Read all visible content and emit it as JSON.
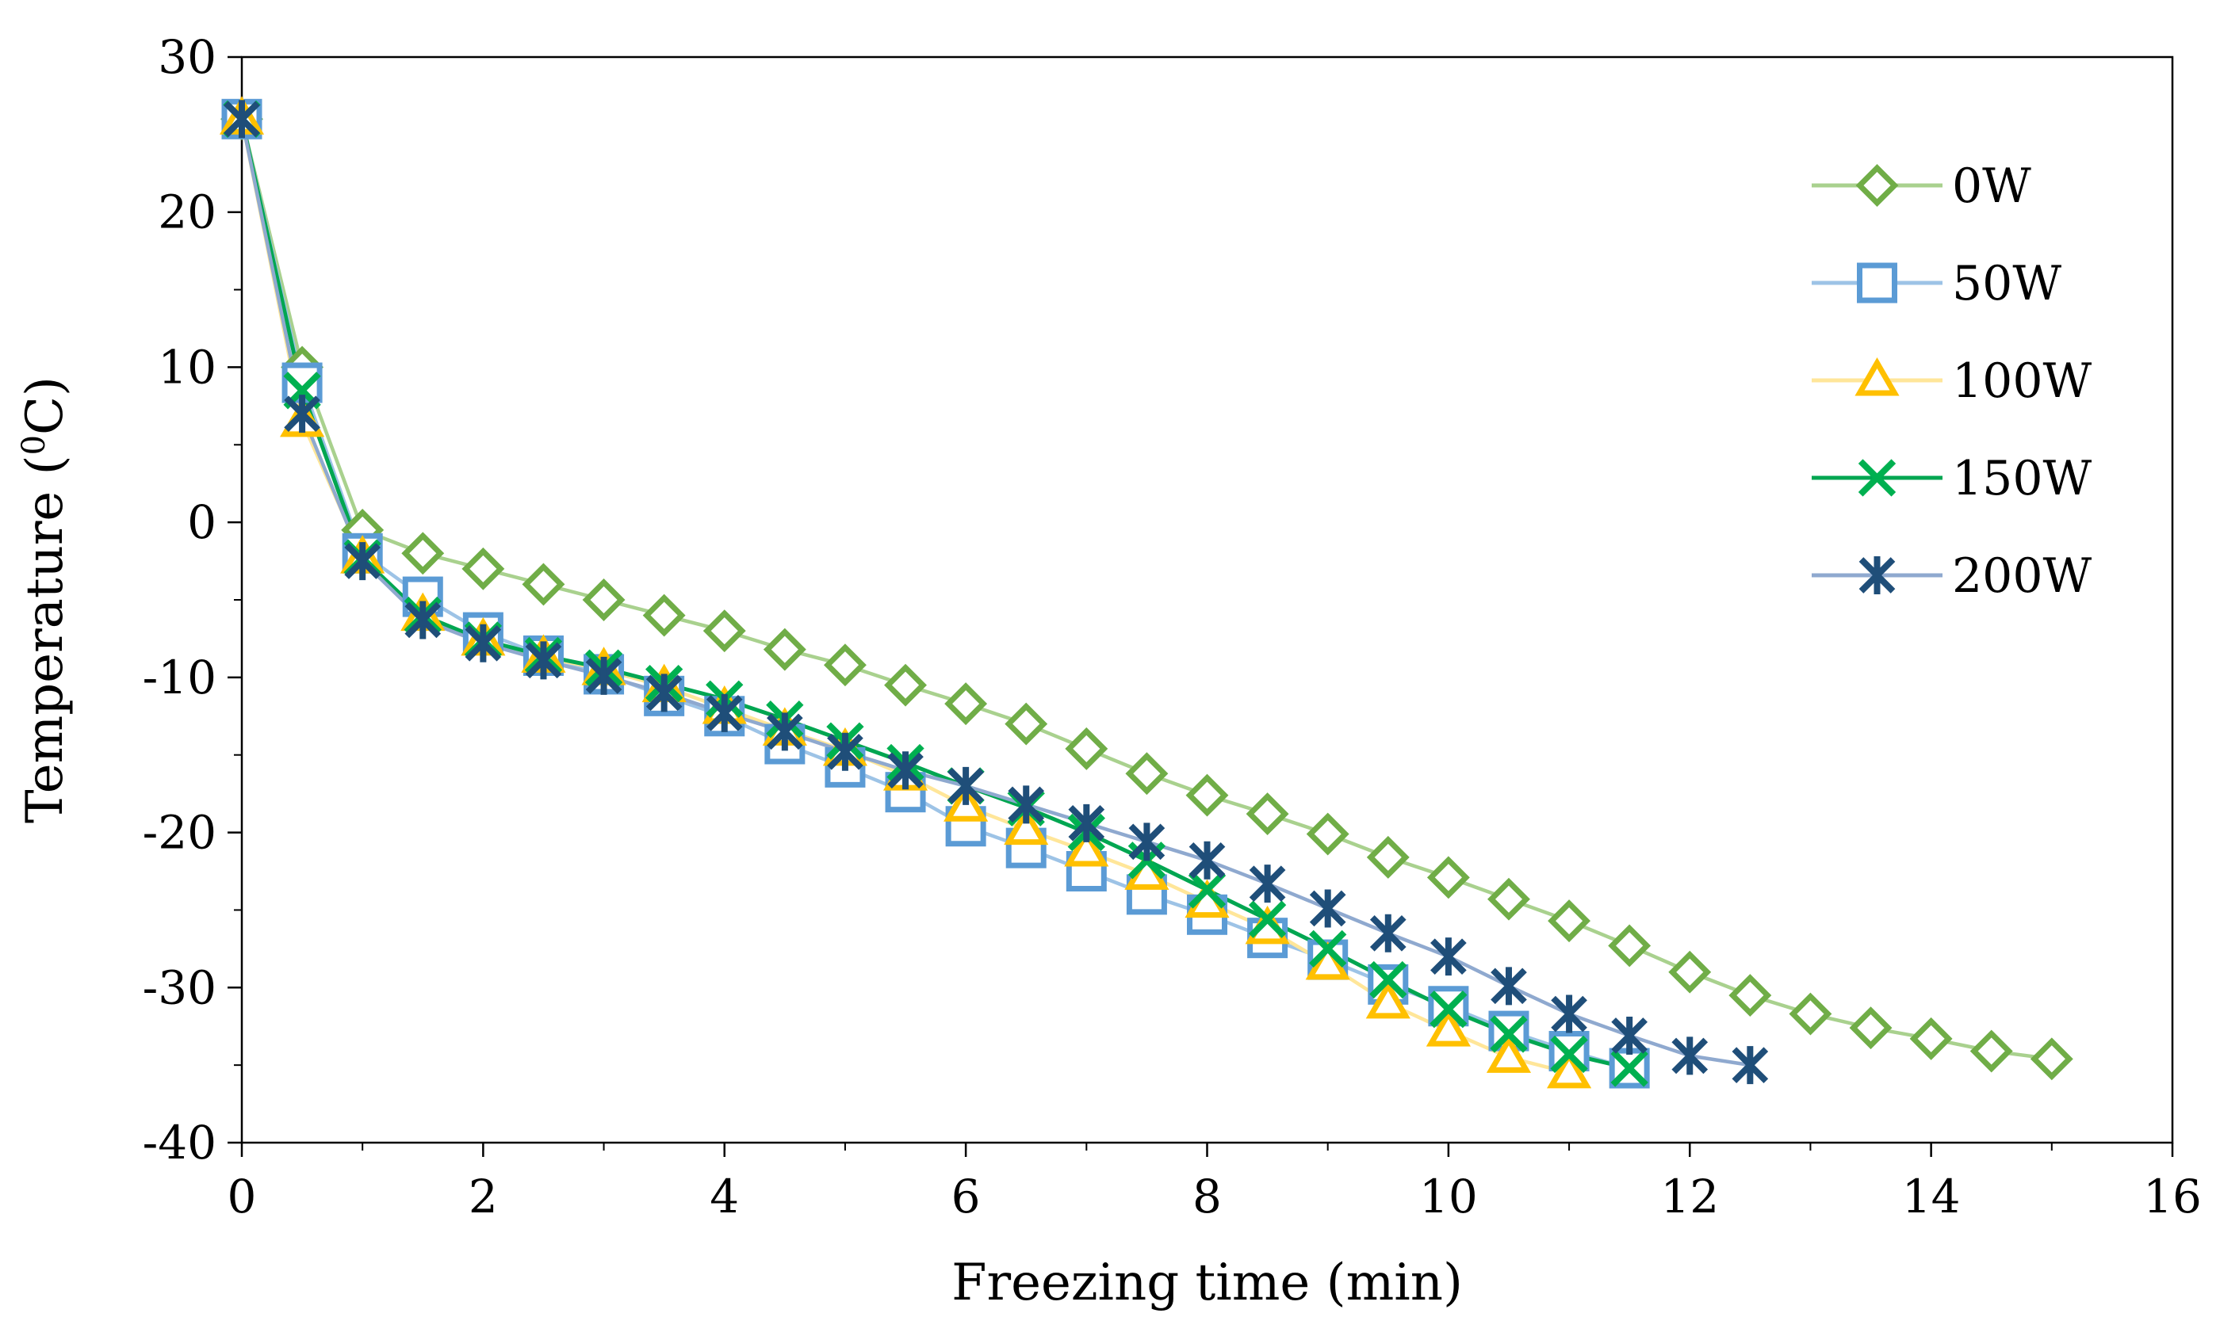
{
  "chart_data": {
    "type": "line",
    "title": "",
    "xlabel": "Freezing time  (min)",
    "ylabel_prefix": "Temperature (",
    "ylabel_sup": "0",
    "ylabel_suffix": "C)",
    "xlim": [
      0,
      16
    ],
    "ylim": [
      -40,
      30
    ],
    "xticks": [
      0,
      2,
      4,
      6,
      8,
      10,
      12,
      14,
      16
    ],
    "xtick_labels": [
      "0",
      "2",
      "4",
      "6",
      "8",
      "10",
      "12",
      "14",
      "16"
    ],
    "yticks": [
      30,
      20,
      10,
      0,
      -10,
      -20,
      -30,
      -40
    ],
    "ytick_labels": [
      "30",
      "20",
      "10",
      "0",
      "-10",
      "-20",
      "-30",
      "-40"
    ],
    "grid": false,
    "legend_position": "top-right",
    "series": [
      {
        "name": "0W",
        "marker": "diamond",
        "marker_color": "#70AD47",
        "line_color": "#A9D18E",
        "x": [
          0,
          0.5,
          1,
          1.5,
          2,
          2.5,
          3,
          3.5,
          4,
          4.5,
          5,
          5.5,
          6,
          6.5,
          7,
          7.5,
          8,
          8.5,
          9,
          9.5,
          10,
          10.5,
          11,
          11.5,
          12,
          12.5,
          13,
          13.5,
          14,
          14.5,
          15
        ],
        "y": [
          26,
          10,
          -0.5,
          -2,
          -3,
          -4,
          -5,
          -6,
          -7,
          -8.2,
          -9.2,
          -10.5,
          -11.7,
          -13,
          -14.6,
          -16.2,
          -17.6,
          -18.8,
          -20.1,
          -21.6,
          -22.9,
          -24.3,
          -25.7,
          -27.3,
          -29,
          -30.5,
          -31.7,
          -32.6,
          -33.3,
          -34.1,
          -34.6
        ]
      },
      {
        "name": "50W",
        "marker": "square",
        "marker_color": "#5B9BD5",
        "line_color": "#9DC3E6",
        "x": [
          0,
          0.5,
          1,
          1.5,
          2,
          2.5,
          3,
          3.5,
          4,
          4.5,
          5,
          5.5,
          6,
          6.5,
          7,
          7.5,
          8,
          8.5,
          9,
          9.5,
          10,
          10.5,
          11,
          11.5
        ],
        "y": [
          26,
          9,
          -2,
          -4.8,
          -7.1,
          -8.6,
          -9.8,
          -11.2,
          -12.5,
          -14.3,
          -15.8,
          -17.4,
          -19.6,
          -21,
          -22.5,
          -24,
          -25.3,
          -26.8,
          -28.2,
          -29.8,
          -31.2,
          -32.8,
          -34.1,
          -35.2
        ]
      },
      {
        "name": "100W",
        "marker": "triangle",
        "marker_color": "#FFC000",
        "line_color": "#FFE699",
        "x": [
          0,
          0.5,
          1,
          1.5,
          2,
          2.5,
          3,
          3.5,
          4,
          4.5,
          5,
          5.5,
          6,
          6.5,
          7,
          7.5,
          8,
          8.5,
          9,
          9.5,
          10,
          10.5,
          11
        ],
        "y": [
          26,
          6.5,
          -2.3,
          -6,
          -7.6,
          -8.7,
          -9.5,
          -10.6,
          -12,
          -13.4,
          -14.7,
          -16.3,
          -18.3,
          -19.8,
          -21.2,
          -22.7,
          -24.5,
          -26.2,
          -28.5,
          -31,
          -32.8,
          -34.5,
          -35.5
        ]
      },
      {
        "name": "150W",
        "marker": "x",
        "marker_color": "#00B050",
        "line_color": "#00A651",
        "x": [
          0,
          0.5,
          1,
          1.5,
          2,
          2.5,
          3,
          3.5,
          4,
          4.5,
          5,
          5.5,
          6,
          6.5,
          7,
          7.5,
          8,
          8.5,
          9,
          9.5,
          10,
          10.5,
          11,
          11.5
        ],
        "y": [
          26,
          8.5,
          -2.3,
          -6,
          -7.6,
          -8.6,
          -9.4,
          -10.4,
          -11.4,
          -12.7,
          -14.1,
          -15.5,
          -17,
          -18.4,
          -20,
          -21.8,
          -23.7,
          -25.6,
          -27.5,
          -29.5,
          -31.4,
          -33,
          -34.3,
          -35.2
        ]
      },
      {
        "name": "200W",
        "marker": "asterisk",
        "marker_color": "#1F4E79",
        "line_color": "#8FA9CF",
        "x": [
          0,
          0.5,
          1,
          1.5,
          2,
          2.5,
          3,
          3.5,
          4,
          4.5,
          5,
          5.5,
          6,
          6.5,
          7,
          7.5,
          8,
          8.5,
          9,
          9.5,
          10,
          10.5,
          11,
          11.5,
          12,
          12.5
        ],
        "y": [
          26,
          7,
          -2.5,
          -6.3,
          -7.8,
          -8.9,
          -9.9,
          -11,
          -12.3,
          -13.5,
          -14.8,
          -16,
          -17,
          -18.2,
          -19.4,
          -20.6,
          -21.8,
          -23.3,
          -24.9,
          -26.5,
          -28,
          -29.9,
          -31.7,
          -33.1,
          -34.4,
          -35
        ]
      }
    ]
  }
}
